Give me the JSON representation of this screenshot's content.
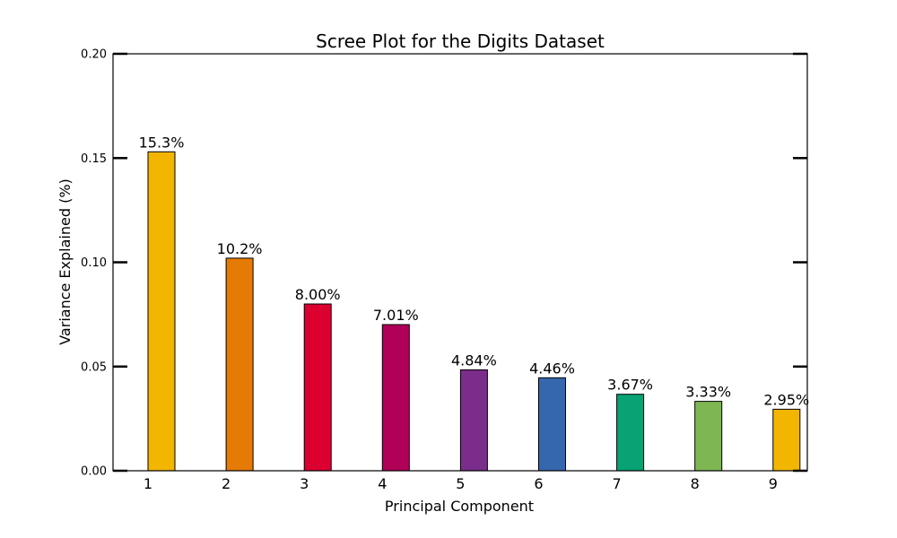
{
  "chart_data": {
    "type": "bar",
    "title": "Scree Plot for the Digits Dataset",
    "xlabel": "Principal Component",
    "ylabel": "Variance Explained (%)",
    "categories": [
      "1",
      "2",
      "3",
      "4",
      "5",
      "6",
      "7",
      "8",
      "9"
    ],
    "values": [
      0.153,
      0.102,
      0.08,
      0.0701,
      0.0484,
      0.0446,
      0.0367,
      0.0333,
      0.0295
    ],
    "data_labels": [
      "15.3%",
      "10.2%",
      "8.00%",
      "7.01%",
      "4.84%",
      "4.46%",
      "3.67%",
      "3.33%",
      "2.95%"
    ],
    "colors": [
      "#F2B600",
      "#E57A05",
      "#DC0031",
      "#B00058",
      "#7A2D8A",
      "#3567AF",
      "#08A274",
      "#7EB752",
      "#F2B600"
    ],
    "ylim": [
      0,
      0.2
    ],
    "yticks": [
      0.0,
      0.05,
      0.1,
      0.15,
      0.2
    ],
    "ytick_labels": [
      "0.00",
      "0.05",
      "0.10",
      "0.15",
      "0.20"
    ],
    "grid": false,
    "legend": "none"
  }
}
